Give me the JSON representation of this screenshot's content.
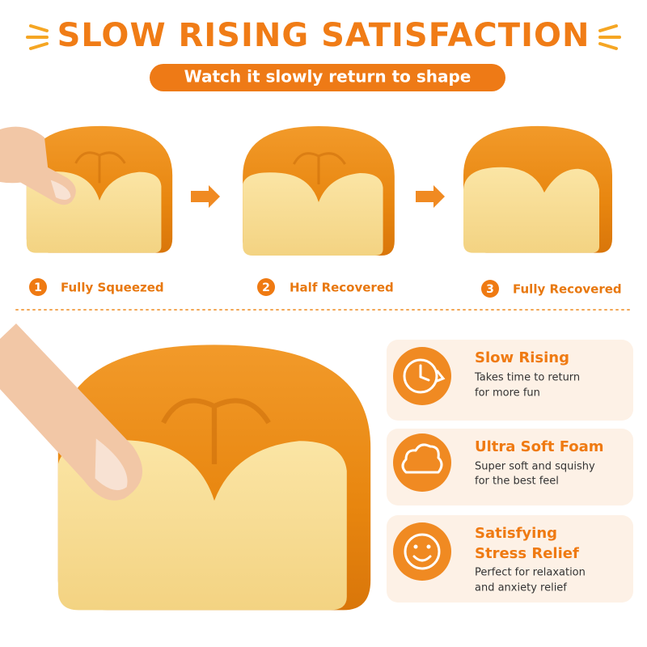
{
  "header": {
    "title": "SLOW RISING SATISFACTION",
    "subtitle": "Watch it slowly return to shape"
  },
  "steps": [
    {
      "number": "1",
      "label": "Fully Squeezed"
    },
    {
      "number": "2",
      "label": "Half Recovered"
    },
    {
      "number": "3",
      "label": "Fully Recovered"
    }
  ],
  "features": [
    {
      "title_lines": [
        "Slow Rising"
      ],
      "desc_lines": [
        "Takes time to return",
        "for more fun"
      ]
    },
    {
      "title_lines": [
        "Ultra Soft Foam"
      ],
      "desc_lines": [
        "Super soft and squishy",
        "for the best feel"
      ]
    },
    {
      "title_lines": [
        "Satisfying",
        "Stress Relief"
      ],
      "desc_lines": [
        "Perfect for relaxation",
        "and anxiety relief"
      ]
    }
  ]
}
